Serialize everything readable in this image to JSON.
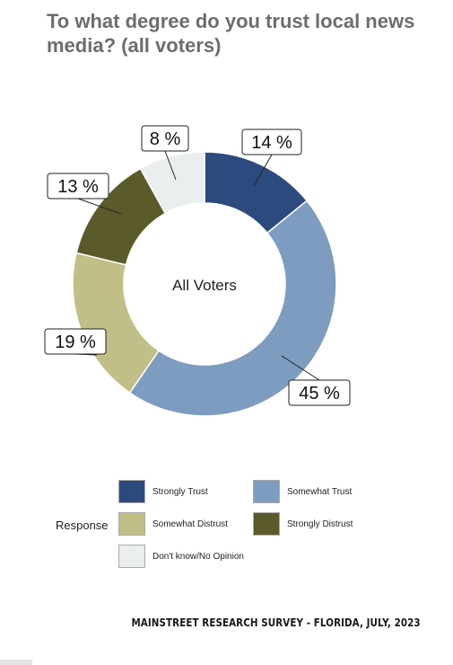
{
  "title": "To what degree do you trust local news media? (all voters)",
  "chart_data": {
    "type": "pie",
    "title": "To what degree do you trust local news media? (all voters)",
    "center_label": "All Voters",
    "legend_title": "Response",
    "legend_position": "bottom",
    "slices": [
      {
        "name": "Strongly Trust",
        "value": 14,
        "label": "14 %",
        "color": "#2c4a7e"
      },
      {
        "name": "Somewhat Trust",
        "value": 45,
        "label": "45 %",
        "color": "#7e9cbf"
      },
      {
        "name": "Somewhat Distrust",
        "value": 19,
        "label": "19 %",
        "color": "#bfbf87"
      },
      {
        "name": "Strongly Distrust",
        "value": 13,
        "label": "13 %",
        "color": "#5b5a2b"
      },
      {
        "name": "Don't know/No Opinion",
        "value": 8,
        "label": "8 %",
        "color": "#eaeeee"
      }
    ]
  },
  "footer": "MAINSTREET RESEARCH SURVEY - FLORIDA, JULY, 2023"
}
